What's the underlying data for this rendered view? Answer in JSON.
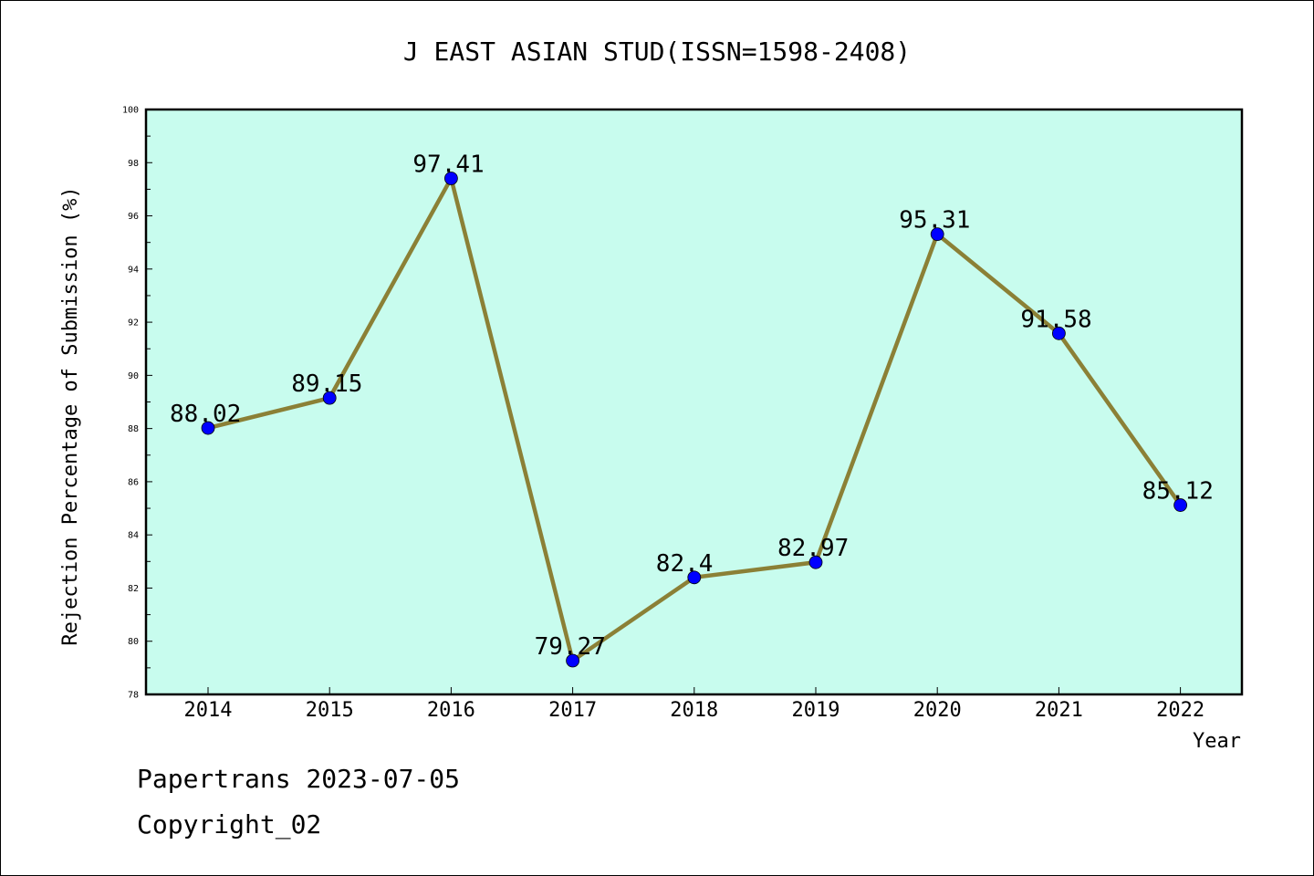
{
  "chart_data": {
    "type": "line",
    "title": "J EAST ASIAN STUD(ISSN=1598-2408)",
    "xlabel": "Year",
    "ylabel": "Rejection Percentage of Submission (%)",
    "categories": [
      "2014",
      "2015",
      "2016",
      "2017",
      "2018",
      "2019",
      "2020",
      "2021",
      "2022"
    ],
    "series": [
      {
        "values": [
          88.02,
          89.15,
          97.41,
          79.27,
          82.4,
          82.97,
          95.31,
          91.58,
          85.12
        ]
      }
    ],
    "data_labels": [
      "88.02",
      "89.15",
      "97.41",
      "79.27",
      "82.4",
      "82.97",
      "95.31",
      "91.58",
      "85.12"
    ],
    "ylim": [
      78,
      100
    ],
    "yticks": [
      "78",
      "80",
      "82",
      "84",
      "86",
      "88",
      "90",
      "92",
      "94",
      "96",
      "98",
      "100"
    ],
    "grid": false,
    "colors": {
      "plot_bg": "#c8fcee",
      "line": "#8b8036",
      "marker": "#0000ff"
    }
  },
  "footer": {
    "line1": "Papertrans 2023-07-05",
    "line2": "Copyright_02"
  }
}
